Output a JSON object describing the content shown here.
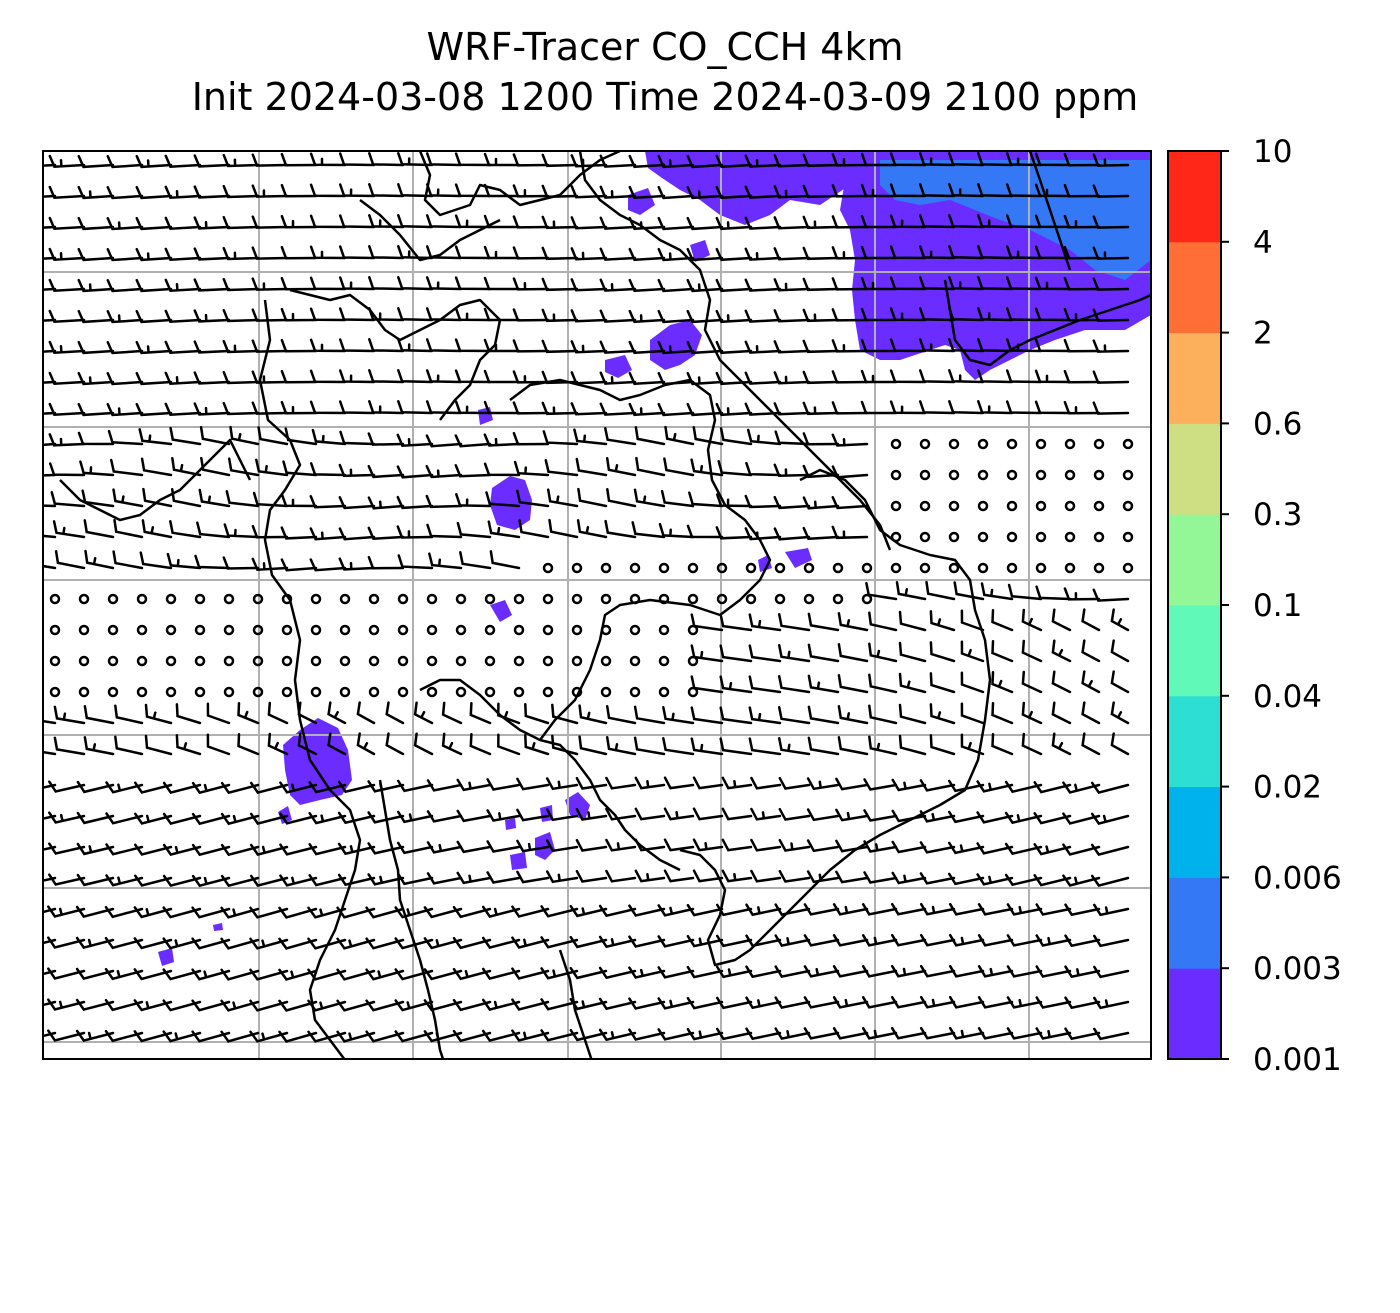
{
  "title": {
    "line1": "WRF-Tracer CO_CCH 4km",
    "line2": "Init 2024-03-08 1200 Time 2024-03-09 2100 ppm"
  },
  "colorbar": {
    "levels": [
      "0.001",
      "0.003",
      "0.006",
      "0.02",
      "0.04",
      "0.1",
      "0.3",
      "0.6",
      "2",
      "4",
      "10"
    ],
    "colors": [
      "#6a2cff",
      "#3478f6",
      "#00b2ec",
      "#2cdfd2",
      "#61f9b8",
      "#93f797",
      "#cddf82",
      "#fdb05c",
      "#ff6e34",
      "#ff2818"
    ]
  },
  "colors": {
    "tracer_low": "#6a2cff",
    "tracer_mid": "#3478f6",
    "grid": "#b0b0b0",
    "coast": "#000000",
    "barb": "#000000"
  }
}
